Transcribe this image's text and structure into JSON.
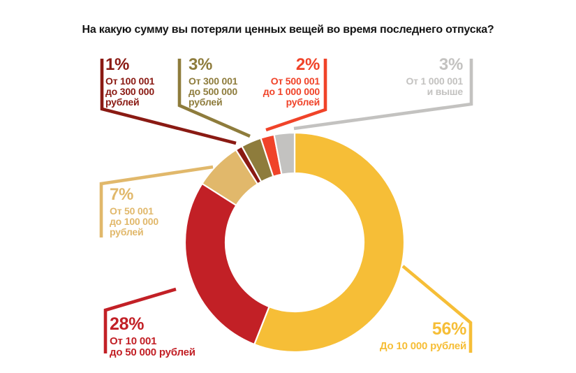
{
  "chart_data": {
    "type": "pie",
    "subtype": "donut",
    "title": "На какую сумму вы потеряли ценных вещей во время последнего отпуска?",
    "title_color": "#141414",
    "background": "#FFFFFF",
    "unit": "%",
    "total": 100,
    "start_angle_deg": 0,
    "direction": "clockwise",
    "segments": [
      {
        "name": "До 10 000 рублей",
        "value": 56,
        "percent_label": "56%",
        "label_lines": [
          "До 10 000 рублей"
        ],
        "color": "#F6BE37"
      },
      {
        "name": "От 10 001 до 50 000 рублей",
        "value": 28,
        "percent_label": "28%",
        "label_lines": [
          "От 10 001",
          "до 50 000 рублей"
        ],
        "color": "#C22026"
      },
      {
        "name": "От 50 001 до 100 000 рублей",
        "value": 7,
        "percent_label": "7%",
        "label_lines": [
          "От 50 001",
          "до 100 000",
          "рублей"
        ],
        "color": "#E1B86B"
      },
      {
        "name": "От 100 001 до 300 000 рублей",
        "value": 1,
        "percent_label": "1%",
        "label_lines": [
          "От 100 001",
          "до 300 000",
          "рублей"
        ],
        "color": "#8A1A13"
      },
      {
        "name": "От 300 001 до 500 000 рублей",
        "value": 3,
        "percent_label": "3%",
        "label_lines": [
          "От 300 001",
          "до 500 000",
          "рублей"
        ],
        "color": "#8E7C3C"
      },
      {
        "name": "От 500 001 до 1 000 000 рублей",
        "value": 2,
        "percent_label": "2%",
        "label_lines": [
          "От 500 001",
          "до 1 000 000",
          "рублей"
        ],
        "color": "#F04329"
      },
      {
        "name": "От 1 000 001 и выше",
        "value": 3,
        "percent_label": "3%",
        "label_lines": [
          "От 1 000 001",
          "и выше"
        ],
        "color": "#C3C2C0"
      }
    ]
  }
}
